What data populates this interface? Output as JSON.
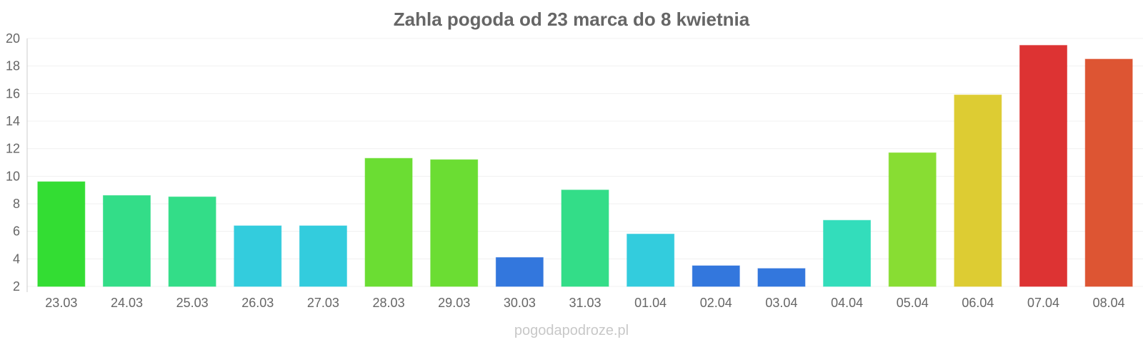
{
  "chart_data": {
    "type": "bar",
    "title": "Zahla pogoda od 23 marca do 8 kwietnia",
    "xlabel": "",
    "ylabel": "",
    "ylim": [
      2,
      20
    ],
    "yticks": [
      2,
      4,
      6,
      8,
      10,
      12,
      14,
      16,
      18,
      20
    ],
    "grid": true,
    "categories": [
      "23.03",
      "24.03",
      "25.03",
      "26.03",
      "27.03",
      "28.03",
      "29.03",
      "30.03",
      "31.03",
      "01.04",
      "02.04",
      "03.04",
      "04.04",
      "05.04",
      "06.04",
      "07.04",
      "08.04"
    ],
    "values": [
      9.6,
      8.6,
      8.5,
      6.4,
      6.4,
      11.3,
      11.2,
      4.1,
      9.0,
      5.8,
      3.5,
      3.3,
      6.8,
      11.7,
      15.9,
      19.5,
      18.5
    ],
    "colors": [
      "#33dd33",
      "#33dd88",
      "#33dd88",
      "#33ccdd",
      "#33ccdd",
      "#6bdd33",
      "#6bdd33",
      "#3377dd",
      "#33dd88",
      "#33ccdd",
      "#3377dd",
      "#3377dd",
      "#33ddbb",
      "#88dd33",
      "#ddcc33",
      "#dd3333",
      "#dd5533"
    ]
  },
  "footer": "pogodapodroze.pl"
}
